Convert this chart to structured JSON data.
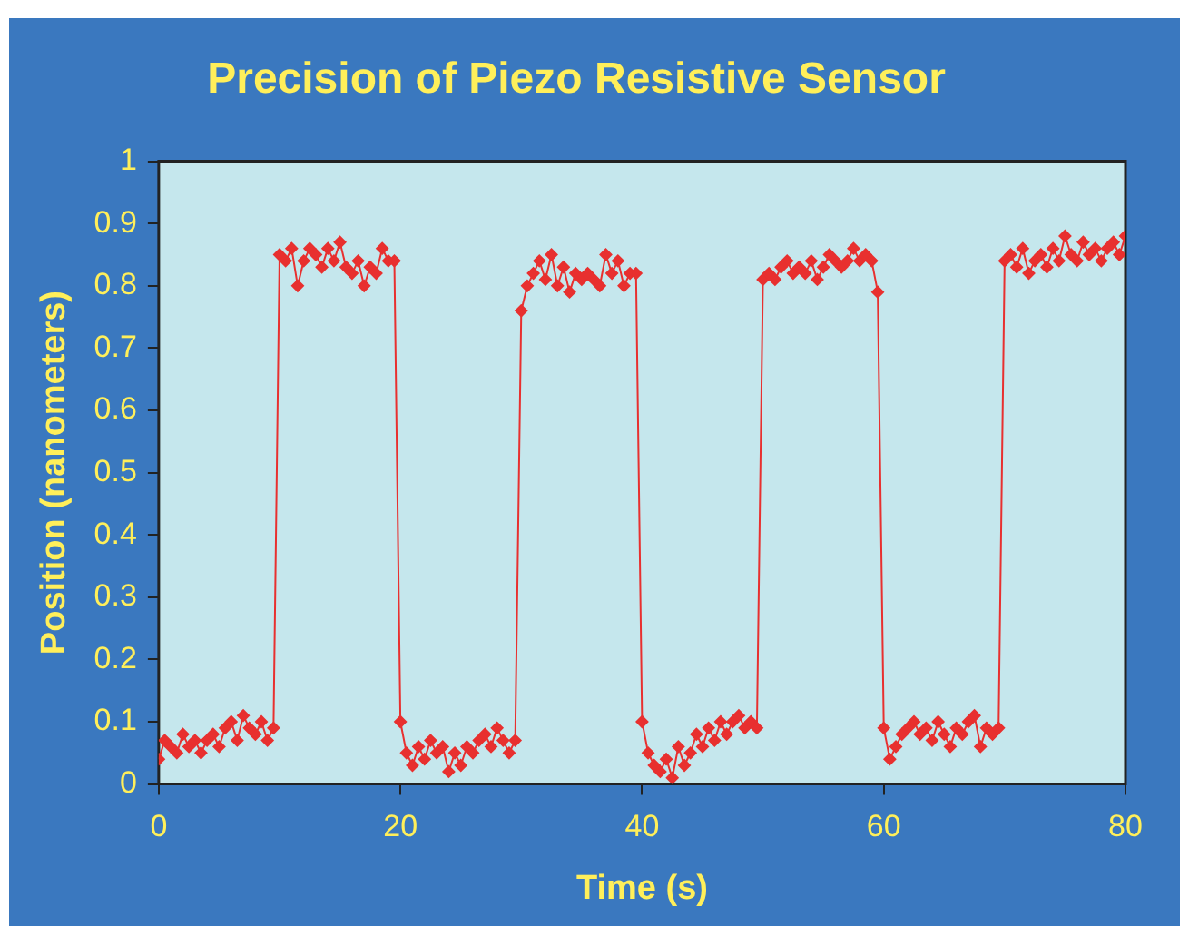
{
  "chart_data": {
    "type": "line",
    "title": "Precision of Piezo Resistive Sensor",
    "xlabel": "Time (s)",
    "ylabel": "Position (nanometers)",
    "x": [
      0,
      0.5,
      1,
      1.5,
      2,
      2.5,
      3,
      3.5,
      4,
      4.5,
      5,
      5.5,
      6,
      6.5,
      7,
      7.5,
      8,
      8.5,
      9,
      9.5,
      10,
      10.5,
      11,
      11.5,
      12,
      12.5,
      13,
      13.5,
      14,
      14.5,
      15,
      15.5,
      16,
      16.5,
      17,
      17.5,
      18,
      18.5,
      19,
      19.5,
      20,
      20.5,
      21,
      21.5,
      22,
      22.5,
      23,
      23.5,
      24,
      24.5,
      25,
      25.5,
      26,
      26.5,
      27,
      27.5,
      28,
      28.5,
      29,
      29.5,
      30,
      30.5,
      31,
      31.5,
      32,
      32.5,
      33,
      33.5,
      34,
      34.5,
      35,
      35.5,
      36,
      36.5,
      37,
      37.5,
      38,
      38.5,
      39,
      39.5,
      40,
      40.5,
      41,
      41.5,
      42,
      42.5,
      43,
      43.5,
      44,
      44.5,
      45,
      45.5,
      46,
      46.5,
      47,
      47.5,
      48,
      48.5,
      49,
      49.5,
      50,
      50.5,
      51,
      51.5,
      52,
      52.5,
      53,
      53.5,
      54,
      54.5,
      55,
      55.5,
      56,
      56.5,
      57,
      57.5,
      58,
      58.5,
      59,
      59.5,
      60,
      60.5,
      61,
      61.5,
      62,
      62.5,
      63,
      63.5,
      64,
      64.5,
      65,
      65.5,
      66,
      66.5,
      67,
      67.5,
      68,
      68.5,
      69,
      69.5,
      70,
      70.5,
      71,
      71.5,
      72,
      72.5,
      73,
      73.5,
      74,
      74.5,
      75,
      75.5,
      76,
      76.5,
      77,
      77.5,
      78,
      78.5,
      79,
      79.5,
      80
    ],
    "series": [
      {
        "color": "#e8302f",
        "values": [
          0.04,
          0.07,
          0.06,
          0.05,
          0.08,
          0.06,
          0.07,
          0.05,
          0.07,
          0.08,
          0.06,
          0.09,
          0.1,
          0.07,
          0.11,
          0.09,
          0.08,
          0.1,
          0.07,
          0.09,
          0.85,
          0.84,
          0.86,
          0.8,
          0.84,
          0.86,
          0.85,
          0.83,
          0.86,
          0.84,
          0.87,
          0.83,
          0.82,
          0.84,
          0.8,
          0.83,
          0.82,
          0.86,
          0.84,
          0.84,
          0.1,
          0.05,
          0.03,
          0.06,
          0.04,
          0.07,
          0.05,
          0.06,
          0.02,
          0.05,
          0.03,
          0.06,
          0.05,
          0.07,
          0.08,
          0.06,
          0.09,
          0.07,
          0.05,
          0.07,
          0.76,
          0.8,
          0.82,
          0.84,
          0.81,
          0.85,
          0.8,
          0.83,
          0.79,
          0.82,
          0.81,
          0.82,
          0.81,
          0.8,
          0.85,
          0.82,
          0.84,
          0.8,
          0.82,
          0.82,
          0.1,
          0.05,
          0.03,
          0.02,
          0.04,
          0.01,
          0.06,
          0.03,
          0.05,
          0.08,
          0.06,
          0.09,
          0.07,
          0.1,
          0.08,
          0.1,
          0.11,
          0.09,
          0.1,
          0.09,
          0.81,
          0.82,
          0.81,
          0.83,
          0.84,
          0.82,
          0.83,
          0.82,
          0.84,
          0.81,
          0.83,
          0.85,
          0.84,
          0.83,
          0.84,
          0.86,
          0.84,
          0.85,
          0.84,
          0.79,
          0.09,
          0.04,
          0.06,
          0.08,
          0.09,
          0.1,
          0.08,
          0.09,
          0.07,
          0.1,
          0.08,
          0.06,
          0.09,
          0.08,
          0.1,
          0.11,
          0.06,
          0.09,
          0.08,
          0.09,
          0.84,
          0.85,
          0.83,
          0.86,
          0.82,
          0.84,
          0.85,
          0.83,
          0.86,
          0.84,
          0.88,
          0.85,
          0.84,
          0.87,
          0.85,
          0.86,
          0.84,
          0.86,
          0.87,
          0.85,
          0.88
        ]
      }
    ],
    "xlim": [
      0,
      80
    ],
    "xticks": [
      0,
      20,
      40,
      60,
      80
    ],
    "ylim": [
      0,
      1
    ],
    "yticks": [
      0,
      0.1,
      0.2,
      0.3,
      0.4,
      0.5,
      0.6,
      0.7,
      0.8,
      0.9,
      1
    ],
    "grid": false,
    "legend": false,
    "marker": "diamond",
    "line_style": "solid"
  }
}
